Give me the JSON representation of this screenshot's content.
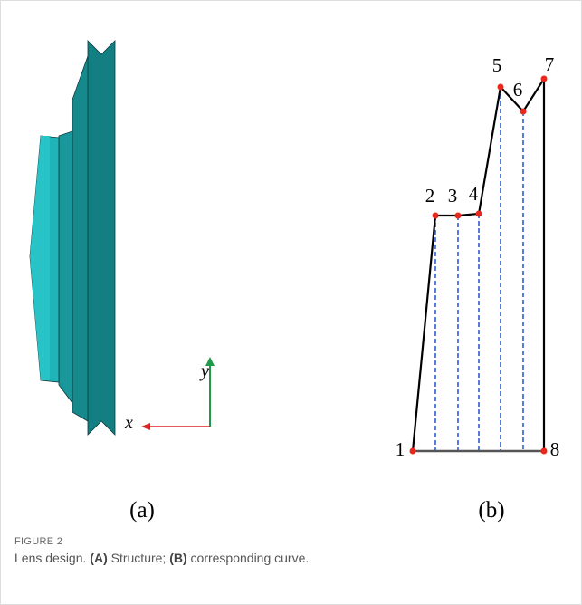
{
  "figure": {
    "panel_a": {
      "label": "(a)",
      "axis_x": "x",
      "axis_y": "y"
    },
    "panel_b": {
      "label": "(b)",
      "point_labels": [
        "1",
        "2",
        "3",
        "4",
        "5",
        "6",
        "7",
        "8"
      ]
    },
    "caption": {
      "number": "FIGURE 2",
      "text_parts": [
        "Lens design. ",
        "(A)",
        " Structure; ",
        "(B)",
        " corresponding curve."
      ]
    }
  }
}
